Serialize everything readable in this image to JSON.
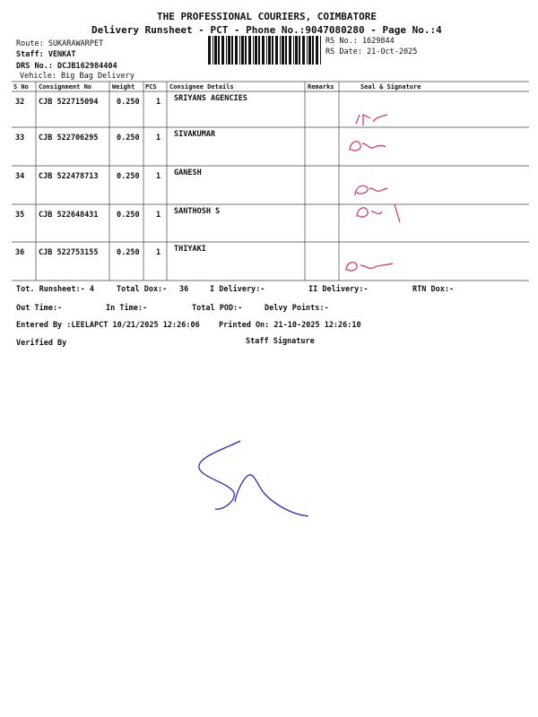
{
  "header": {
    "title": "THE PROFESSIONAL COURIERS, COIMBATORE",
    "subtitle": "Delivery Runsheet - PCT - Phone No.:9047080280 - Page No.:4"
  },
  "info": {
    "route": "Route: SUKARAWARPET",
    "staff": "Staff: VENKAT",
    "drs": "DRS No.: DCJB162984404",
    "vehicle": "Vehicle: Big Bag Delivery",
    "rs_no": "RS No.: 1629844",
    "rs_date": "RS Date: 21-Oct-2025"
  },
  "table": {
    "headers": [
      "S No",
      "Consignment No",
      "Weight",
      "PCS",
      "Consignee Details",
      "Remarks",
      "Seal & Signature"
    ],
    "rows": [
      [
        "32",
        "CJB 522715094",
        "0.250",
        "1",
        "SRIYANS AGENCIES"
      ],
      [
        "33",
        "CJB 522706295",
        "0.250",
        "1",
        "SIVAKUMAR"
      ],
      [
        "34",
        "CJB 522478713",
        "0.250",
        "1",
        "GANESH"
      ],
      [
        "35",
        "CJB 522648431",
        "0.250",
        "1",
        "SANTHOSH S"
      ],
      [
        "36",
        "CJB 522753155",
        "0.250",
        "1",
        "THIYAKI"
      ]
    ]
  },
  "summary": {
    "tot_runsheet": "Tot. Runsheet:- 4",
    "total_dox": "Total Dox:-",
    "total_dox_value": "36",
    "i_delivery": "I Delivery:-",
    "ii_delivery": "II Delivery:-",
    "rtn_dox": "RTN Dox:-",
    "out_time": "Out Time:-",
    "in_time": "In Time:-",
    "total_pod": "Total POD:-",
    "delvy_points": "Delvy Points:-",
    "entered_by": "Entered By :LEELAPCT 10/21/2025 12:26:06",
    "printed_on": "Printed On: 21-10-2025 12:26:10",
    "verified_by": "Verified By",
    "staff_signature": "Staff Signature"
  }
}
